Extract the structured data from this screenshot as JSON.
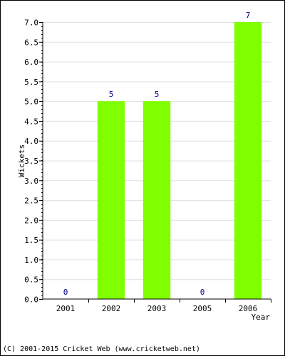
{
  "chart_data": {
    "type": "bar",
    "categories": [
      "2001",
      "2002",
      "2003",
      "2005",
      "2006"
    ],
    "values": [
      0,
      5,
      5,
      0,
      7
    ],
    "data_labels": [
      "0",
      "5",
      "5",
      "0",
      "7"
    ],
    "xlabel": "Year",
    "ylabel": "Wickets",
    "ylim": [
      0,
      7.0
    ],
    "yticks": [
      "0.0",
      "0.5",
      "1.0",
      "1.5",
      "2.0",
      "2.5",
      "3.0",
      "3.5",
      "4.0",
      "4.5",
      "5.0",
      "5.5",
      "6.0",
      "6.5",
      "7.0"
    ],
    "grid": true,
    "bar_color": "#80ff00",
    "label_color": "#000080"
  },
  "footer": {
    "copyright": "(C) 2001-2015 Cricket Web (www.cricketweb.net)"
  }
}
